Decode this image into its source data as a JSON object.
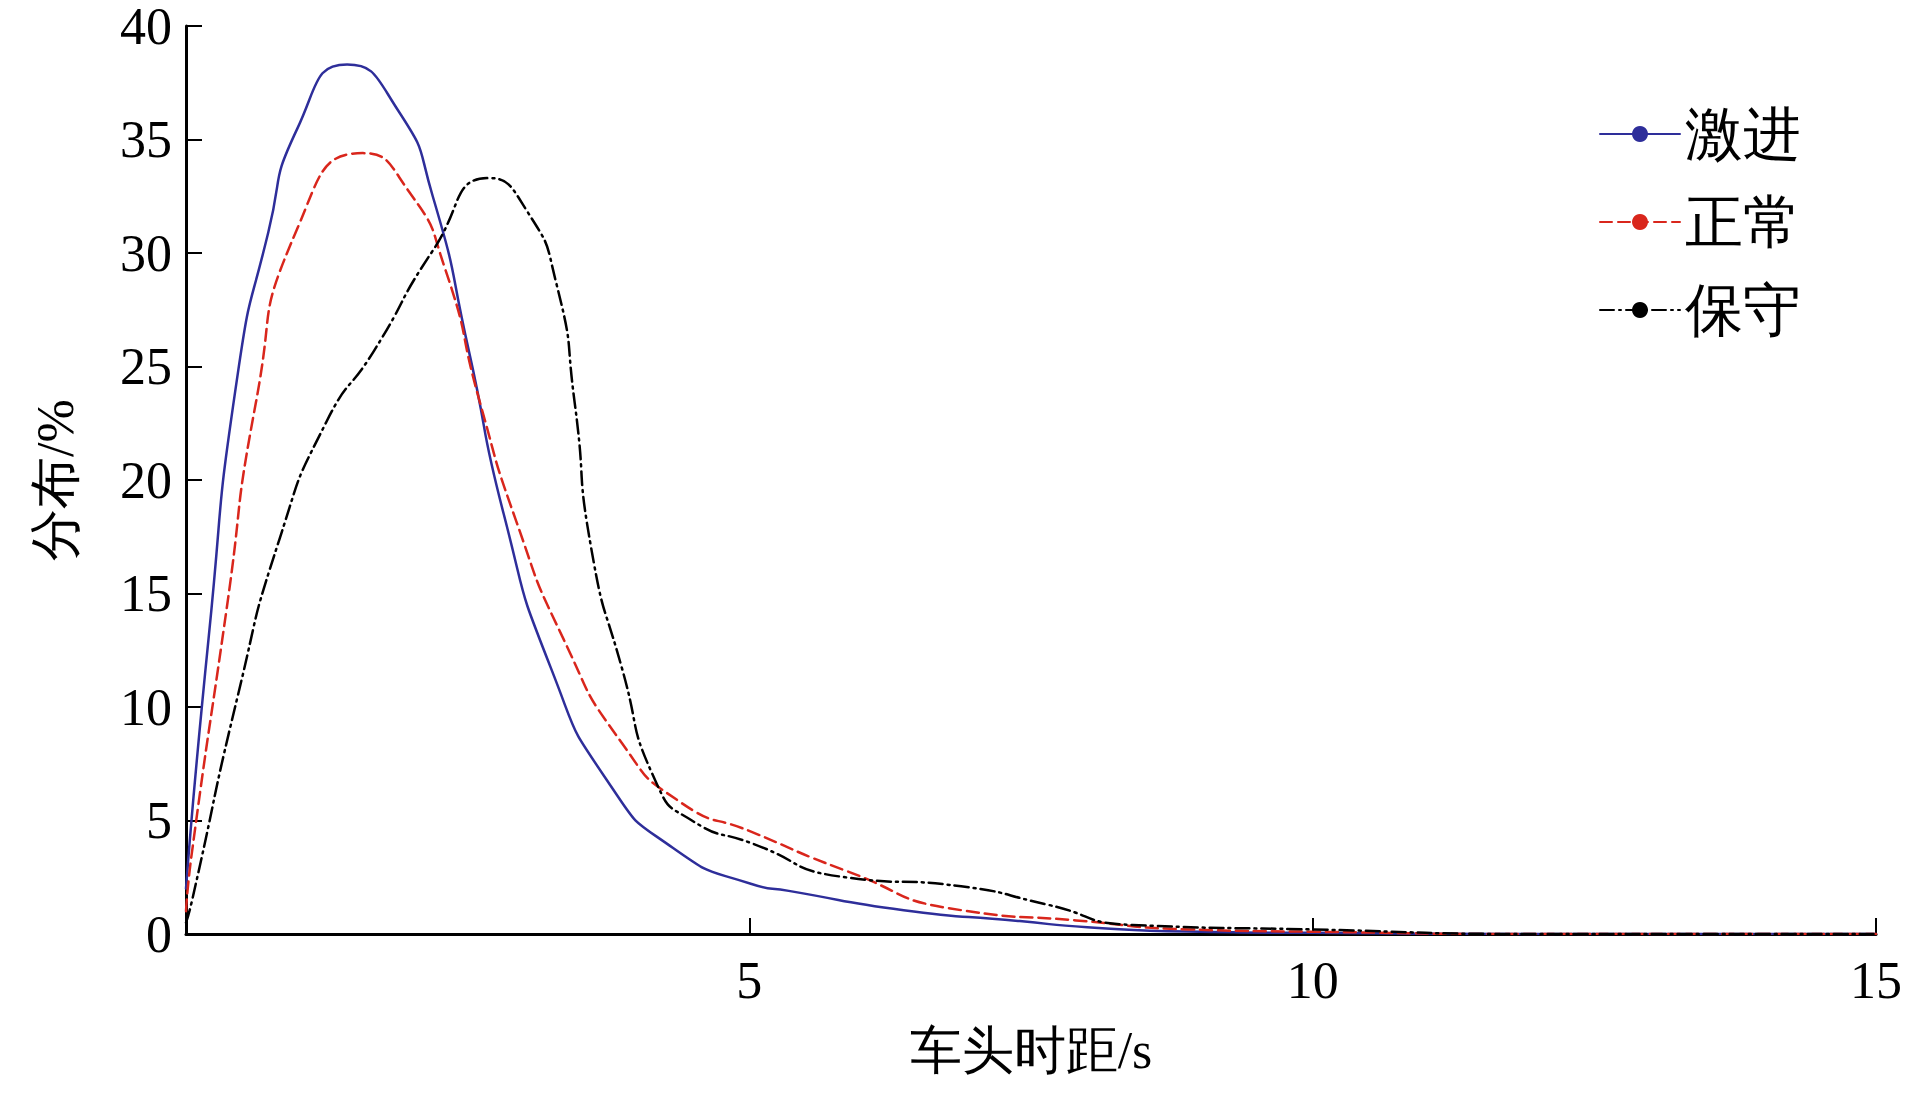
{
  "chart_data": {
    "type": "line",
    "xlabel": "车头时距/s",
    "ylabel": "分布/%",
    "xlim": [
      0,
      15
    ],
    "xticks": [
      5,
      10,
      15
    ],
    "ylim": [
      0,
      40
    ],
    "yticks": [
      0,
      5,
      10,
      15,
      20,
      25,
      30,
      35,
      40
    ],
    "grid": false,
    "legend": "top right",
    "marker": "none",
    "series": [
      {
        "name": "激进",
        "color": "#2e2e9a",
        "line_style": "solid",
        "x": [
          0,
          0.2,
          0.46,
          0.73,
          0.99,
          1.43,
          1.88,
          2.19,
          2.51,
          2.82,
          3.24,
          3.76,
          4.32,
          5.02,
          5.35,
          6.37,
          7.4,
          8,
          9,
          10,
          12,
          15
        ],
        "values": [
          2,
          13,
          24.7,
          30.9,
          35.5,
          38.3,
          36.3,
          32.5,
          25.7,
          18.5,
          11.7,
          6.6,
          3.8,
          2.2,
          1.9,
          1.05,
          0.57,
          0.3,
          0.1,
          0.05,
          0,
          0
        ]
      },
      {
        "name": "正常",
        "color": "#d9261c",
        "line_style": "dashed",
        "x": [
          0,
          0.05,
          0.36,
          0.62,
          0.99,
          1.57,
          1.98,
          2.3,
          2.61,
          2.93,
          3.35,
          3.87,
          4.39,
          5.02,
          5.85,
          6.88,
          7.9,
          8.9,
          10,
          12,
          15
        ],
        "values": [
          1,
          3.5,
          14.3,
          23.4,
          31.1,
          34.4,
          32.7,
          29.3,
          23.4,
          18.2,
          13,
          8.4,
          5.8,
          4.5,
          2.8,
          1.05,
          0.6,
          0.2,
          0.1,
          0,
          0
        ]
      },
      {
        "name": "保守",
        "color": "#000000",
        "line_style": "dashdot",
        "x": [
          0,
          0.05,
          0.46,
          0.83,
          1.25,
          1.67,
          2.19,
          2.69,
          3.02,
          3.29,
          3.45,
          3.6,
          3.87,
          4.18,
          4.49,
          5.02,
          5.85,
          6.88,
          7.64,
          8.4,
          10,
          12,
          15
        ],
        "values": [
          0.5,
          1.4,
          10.5,
          17.4,
          22.6,
          25.7,
          30.1,
          33.3,
          31.9,
          28.6,
          23.4,
          16.9,
          11.7,
          6.6,
          5,
          4,
          2.5,
          2.1,
          1.3,
          0.4,
          0.2,
          0,
          0
        ]
      }
    ]
  }
}
